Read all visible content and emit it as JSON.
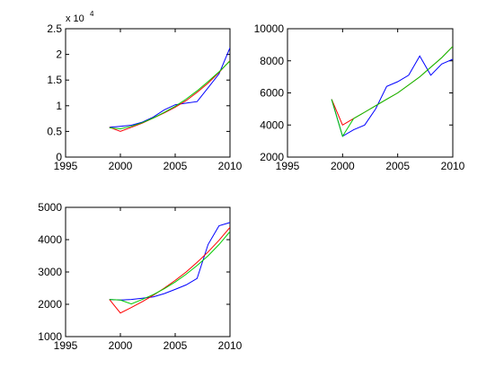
{
  "chart_data": [
    {
      "type": "line",
      "title": "",
      "xlabel": "",
      "ylabel": "",
      "exponent_label": "x 10",
      "exponent_power": "4",
      "xlim": [
        1995,
        2010
      ],
      "ylim": [
        0,
        2.5
      ],
      "x_ticks": [
        "1995",
        "2000",
        "2005",
        "2010"
      ],
      "y_ticks": [
        "0",
        "0.5",
        "1",
        "1.5",
        "2",
        "2.5"
      ],
      "x_tick_values": [
        1995,
        2000,
        2005,
        2010
      ],
      "y_tick_values": [
        0,
        0.5,
        1,
        1.5,
        2,
        2.5
      ],
      "grid": false,
      "series": [
        {
          "color": "#0000ff",
          "x": [
            1999,
            2000,
            2001,
            2002,
            2003,
            2004,
            2005,
            2006,
            2007,
            2008,
            2009,
            2010
          ],
          "y": [
            0.58,
            0.6,
            0.62,
            0.68,
            0.78,
            0.92,
            1.02,
            1.05,
            1.08,
            1.35,
            1.62,
            2.13
          ]
        },
        {
          "color": "#ff0000",
          "x": [
            1999,
            2000,
            2001,
            2002,
            2003,
            2004,
            2005,
            2006,
            2007,
            2008,
            2009,
            2010
          ],
          "y": [
            0.58,
            0.5,
            0.58,
            0.66,
            0.76,
            0.86,
            0.97,
            1.1,
            1.26,
            1.44,
            1.65,
            1.88
          ]
        },
        {
          "color": "#00cc00",
          "x": [
            1999,
            2000,
            2001,
            2002,
            2003,
            2004,
            2005,
            2006,
            2007,
            2008,
            2009,
            2010
          ],
          "y": [
            0.57,
            0.55,
            0.6,
            0.67,
            0.76,
            0.87,
            0.99,
            1.13,
            1.29,
            1.47,
            1.66,
            1.87
          ]
        }
      ]
    },
    {
      "type": "line",
      "title": "",
      "xlabel": "",
      "ylabel": "",
      "xlim": [
        1995,
        2010
      ],
      "ylim": [
        2000,
        10000
      ],
      "x_ticks": [
        "1995",
        "2000",
        "2005",
        "2010"
      ],
      "y_ticks": [
        "2000",
        "4000",
        "6000",
        "8000",
        "10000"
      ],
      "x_tick_values": [
        1995,
        2000,
        2005,
        2010
      ],
      "y_tick_values": [
        2000,
        4000,
        6000,
        8000,
        10000
      ],
      "grid": false,
      "series": [
        {
          "color": "#0000ff",
          "x": [
            1999,
            2000,
            2001,
            2002,
            2003,
            2004,
            2005,
            2006,
            2007,
            2008,
            2009,
            2010
          ],
          "y": [
            5600,
            3300,
            3700,
            4000,
            5000,
            6400,
            6700,
            7100,
            8300,
            7100,
            7800,
            8100
          ]
        },
        {
          "color": "#ff0000",
          "x": [
            1999,
            2000,
            2001,
            2002,
            2003,
            2004,
            2005,
            2006,
            2007,
            2008,
            2009,
            2010
          ],
          "y": [
            5600,
            4000,
            4400,
            4800,
            5200,
            5600,
            6000,
            6500,
            7000,
            7600,
            8200,
            8900
          ]
        },
        {
          "color": "#00cc00",
          "x": [
            1999,
            2000,
            2001,
            2002,
            2003,
            2004,
            2005,
            2006,
            2007,
            2008,
            2009,
            2010
          ],
          "y": [
            5600,
            3300,
            4400,
            4800,
            5200,
            5600,
            6000,
            6500,
            7000,
            7600,
            8200,
            8900
          ]
        }
      ]
    },
    {
      "type": "line",
      "title": "",
      "xlabel": "",
      "ylabel": "",
      "xlim": [
        1995,
        2010
      ],
      "ylim": [
        1000,
        5000
      ],
      "x_ticks": [
        "1995",
        "2000",
        "2005",
        "2010"
      ],
      "y_ticks": [
        "1000",
        "2000",
        "3000",
        "4000",
        "5000"
      ],
      "x_tick_values": [
        1995,
        2000,
        2005,
        2010
      ],
      "y_tick_values": [
        1000,
        2000,
        3000,
        4000,
        5000
      ],
      "grid": false,
      "series": [
        {
          "color": "#0000ff",
          "x": [
            1999,
            2000,
            2001,
            2002,
            2003,
            2004,
            2005,
            2006,
            2007,
            2008,
            2009,
            2010
          ],
          "y": [
            2150,
            2130,
            2150,
            2190,
            2230,
            2330,
            2460,
            2600,
            2800,
            3850,
            4430,
            4530
          ]
        },
        {
          "color": "#ff0000",
          "x": [
            1999,
            2000,
            2001,
            2002,
            2003,
            2004,
            2005,
            2006,
            2007,
            2008,
            2009,
            2010
          ],
          "y": [
            2150,
            1730,
            1900,
            2080,
            2280,
            2500,
            2740,
            3000,
            3300,
            3620,
            3980,
            4380
          ]
        },
        {
          "color": "#00cc00",
          "x": [
            1999,
            2000,
            2001,
            2002,
            2003,
            2004,
            2005,
            2006,
            2007,
            2008,
            2009,
            2010
          ],
          "y": [
            2150,
            2130,
            2010,
            2150,
            2300,
            2480,
            2690,
            2930,
            3200,
            3500,
            3850,
            4250
          ]
        }
      ]
    }
  ]
}
